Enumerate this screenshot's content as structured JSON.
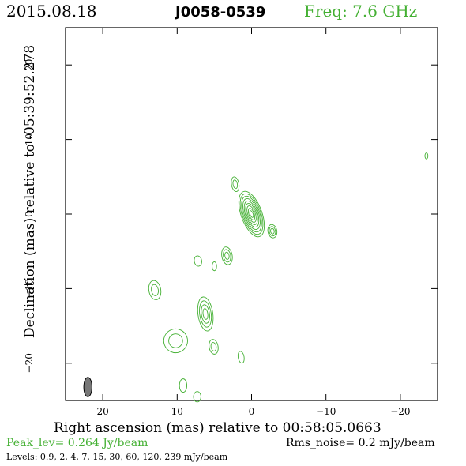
{
  "header": {
    "date": "2015.08.18",
    "source": "J0058-0539",
    "frequency": "Freq: 7.6 GHz"
  },
  "chart_data": {
    "type": "contour",
    "xlabel": "Right ascension (mas) relative to 00:58:05.0663",
    "ylabel": "Declination (mas) relative to -05:39:52.278",
    "xlim": [
      25.0,
      -25.0
    ],
    "ylim": [
      -25.0,
      25.0
    ],
    "x_ticks": [
      20,
      10,
      0,
      -10,
      -20
    ],
    "y_ticks": [
      20,
      10,
      0,
      -10,
      -20
    ],
    "contour_color": "#44b033",
    "contour_levels_mJy": [
      0.9,
      2,
      4,
      7,
      15,
      30,
      60,
      120,
      239
    ],
    "components": [
      {
        "x": 0.0,
        "y": 0.0,
        "rx": 1.4,
        "ry": 3.2,
        "angle": -20,
        "peak_level": 9
      },
      {
        "x": 3.3,
        "y": -5.6,
        "rx": 0.7,
        "ry": 1.2,
        "angle": -10,
        "peak_level": 3
      },
      {
        "x": -2.8,
        "y": -2.3,
        "rx": 0.6,
        "ry": 0.9,
        "angle": -10,
        "peak_level": 3
      },
      {
        "x": 2.2,
        "y": 4.0,
        "rx": 0.5,
        "ry": 1.0,
        "angle": -10,
        "peak_level": 2
      },
      {
        "x": 6.2,
        "y": -13.4,
        "rx": 1.0,
        "ry": 2.3,
        "angle": -8,
        "peak_level": 4
      },
      {
        "x": 13.0,
        "y": -10.2,
        "rx": 0.8,
        "ry": 1.3,
        "angle": -10,
        "peak_level": 2
      },
      {
        "x": 10.2,
        "y": -17.0,
        "rx": 1.6,
        "ry": 1.6,
        "angle": -20,
        "peak_level": 2
      },
      {
        "x": 5.1,
        "y": -17.8,
        "rx": 0.6,
        "ry": 1.0,
        "angle": -10,
        "peak_level": 2
      },
      {
        "x": 7.2,
        "y": -6.3,
        "rx": 0.5,
        "ry": 0.7,
        "angle": -10,
        "peak_level": 1
      },
      {
        "x": 5.0,
        "y": -7.0,
        "rx": 0.3,
        "ry": 0.6,
        "angle": 0,
        "peak_level": 1
      },
      {
        "x": 1.4,
        "y": -19.2,
        "rx": 0.4,
        "ry": 0.8,
        "angle": -10,
        "peak_level": 1
      },
      {
        "x": 9.2,
        "y": -23.0,
        "rx": 0.5,
        "ry": 0.9,
        "angle": 0,
        "peak_level": 1
      },
      {
        "x": 7.3,
        "y": -24.5,
        "rx": 0.5,
        "ry": 0.7,
        "angle": 0,
        "peak_level": 1
      },
      {
        "x": -23.5,
        "y": 7.8,
        "rx": 0.2,
        "ry": 0.4,
        "angle": 0,
        "peak_level": 1
      }
    ],
    "beam": {
      "x": 22.0,
      "y": -23.2,
      "major_mas": 2.6,
      "minor_mas": 1.1,
      "pa_deg": 0,
      "fill": "#777777"
    }
  },
  "footer": {
    "peak": "Peak_lev=  0.264 Jy/beam",
    "rms": "Rms_noise=  0.2 mJy/beam",
    "levels": "Levels: 0.9,   2,   4,   7,  15,  30,  60, 120, 239 mJy/beam"
  }
}
